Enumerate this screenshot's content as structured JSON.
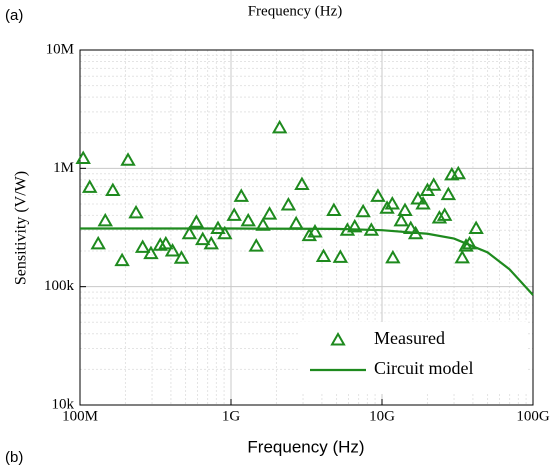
{
  "chart_data": {
    "type": "scatter",
    "annotations": [
      "(a)",
      "Frequency (Hz)",
      "(b)"
    ],
    "x_label": "Frequency (Hz)",
    "y_label": "Sensitivity (V/W)",
    "xscale": "log",
    "yscale": "log",
    "xlim": [
      100000000,
      100000000000
    ],
    "ylim": [
      10000,
      10000000
    ],
    "xticks": [
      {
        "value": 100000000,
        "label": "100M"
      },
      {
        "value": 1000000000,
        "label": "1G"
      },
      {
        "value": 10000000000,
        "label": "10G"
      },
      {
        "value": 100000000000,
        "label": "100G"
      }
    ],
    "yticks": [
      {
        "value": 10000,
        "label": "10k"
      },
      {
        "value": 100000,
        "label": "100k"
      },
      {
        "value": 1000000,
        "label": "1M"
      },
      {
        "value": 10000000,
        "label": "10M"
      }
    ],
    "grid": true,
    "minor_grid": true,
    "legend": "lower right",
    "series": [
      {
        "name": "Measured",
        "type": "scatter",
        "color": "#1e8a1e",
        "x": [
          105000000,
          116000000,
          132000000,
          147000000,
          165000000,
          190000000,
          208000000,
          235000000,
          260000000,
          295000000,
          340000000,
          370000000,
          410000000,
          470000000,
          530000000,
          590000000,
          650000000,
          740000000,
          820000000,
          910000000,
          1050000000,
          1170000000,
          1300000000,
          1470000000,
          1630000000,
          1800000000,
          2100000000,
          2400000000,
          2700000000,
          2950000000,
          3300000000,
          3600000000,
          4100000000,
          4800000000,
          5300000000,
          5900000000,
          6600000000,
          7500000000,
          8500000000,
          9400000000,
          10800000000,
          11700000000,
          13400000000,
          11800000000,
          14200000000,
          15500000000,
          16700000000,
          17300000000,
          18700000000,
          20000000000,
          22000000000,
          24000000000,
          26000000000,
          27500000000,
          29000000000,
          32000000000,
          34000000000,
          36000000000,
          38000000000,
          42000000000
        ],
        "values": [
          1210000,
          690000,
          230000,
          360000,
          650000,
          166000,
          1170000,
          420000,
          215000,
          190000,
          224000,
          230000,
          200000,
          174000,
          280000,
          350000,
          250000,
          230000,
          310000,
          280000,
          400000,
          580000,
          360000,
          220000,
          330000,
          410000,
          2200000,
          490000,
          340000,
          730000,
          270000,
          290000,
          180000,
          440000,
          177000,
          300000,
          320000,
          430000,
          300000,
          580000,
          460000,
          500000,
          360000,
          175000,
          440000,
          310000,
          280000,
          550000,
          500000,
          650000,
          720000,
          380000,
          400000,
          600000,
          880000,
          900000,
          175000,
          220000,
          230000,
          310000
        ]
      },
      {
        "name": "Circuit model",
        "type": "line",
        "color": "#1e8a1e",
        "x": [
          100000000,
          1000000000,
          5000000000,
          10000000000,
          20000000000,
          30000000000,
          50000000000,
          70000000000,
          100000000000
        ],
        "values": [
          310000,
          310000,
          308000,
          300000,
          280000,
          255000,
          195000,
          140000,
          85000
        ]
      }
    ]
  }
}
